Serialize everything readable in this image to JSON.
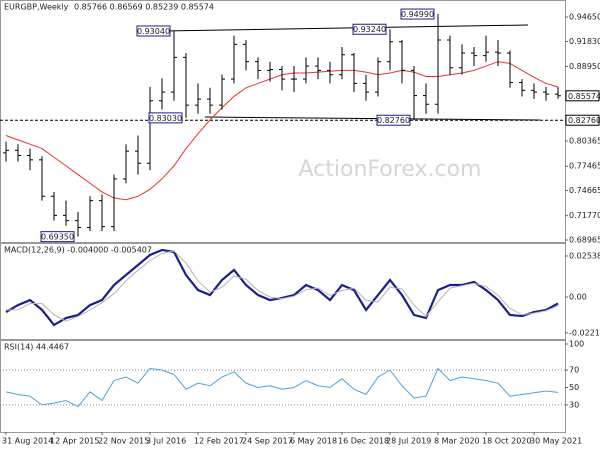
{
  "chart_data": [
    {
      "type": "ohlc",
      "title": "EURGBP,Weekly",
      "quote": "0.85766 0.86569 0.85239 0.85574",
      "watermark": "ActionForex.com",
      "categories": [
        "31 Aug 2014",
        null,
        null,
        null,
        "12 Apr 2015",
        null,
        null,
        null,
        "22 Nov 2015",
        null,
        null,
        null,
        "3 Jul 2016",
        null,
        null,
        null,
        "12 Feb 2017",
        null,
        null,
        null,
        "24 Sep 2017",
        null,
        null,
        null,
        "6 May 2018",
        null,
        null,
        null,
        "16 Dec 2018",
        null,
        null,
        null,
        "28 Jul 2019",
        null,
        null,
        null,
        "8 Mar 2020",
        null,
        null,
        null,
        "18 Oct 2020",
        null,
        null,
        null,
        "30 May 2021",
        null,
        null
      ],
      "open": [
        0.79,
        0.793,
        0.787,
        0.782,
        0.74,
        0.718,
        0.712,
        0.704,
        0.735,
        0.705,
        0.76,
        0.792,
        0.778,
        0.85,
        0.86,
        0.9,
        0.845,
        0.852,
        0.845,
        0.875,
        0.915,
        0.895,
        0.885,
        0.886,
        0.875,
        0.875,
        0.89,
        0.885,
        0.88,
        0.903,
        0.87,
        0.86,
        0.895,
        0.918,
        0.885,
        0.856,
        0.846,
        0.92,
        0.888,
        0.905,
        0.902,
        0.906,
        0.905,
        0.871,
        0.862,
        0.86,
        0.85766
      ],
      "high": [
        0.803,
        0.8,
        0.795,
        0.786,
        0.745,
        0.735,
        0.722,
        0.74,
        0.742,
        0.765,
        0.8,
        0.81,
        0.866,
        0.876,
        0.9304,
        0.905,
        0.87,
        0.865,
        0.88,
        0.925,
        0.92,
        0.9,
        0.895,
        0.89,
        0.89,
        0.9,
        0.9,
        0.895,
        0.912,
        0.905,
        0.88,
        0.9,
        0.9324,
        0.92,
        0.89,
        0.87,
        0.9499,
        0.925,
        0.915,
        0.912,
        0.925,
        0.92,
        0.908,
        0.875,
        0.87,
        0.866,
        0.86569
      ],
      "low": [
        0.78,
        0.78,
        0.77,
        0.735,
        0.712,
        0.706,
        0.6935,
        0.7,
        0.7,
        0.7,
        0.755,
        0.765,
        0.77,
        0.84,
        0.85,
        0.8303,
        0.835,
        0.835,
        0.84,
        0.87,
        0.885,
        0.875,
        0.872,
        0.862,
        0.86,
        0.87,
        0.875,
        0.87,
        0.875,
        0.86,
        0.85,
        0.855,
        0.885,
        0.87,
        0.8276,
        0.835,
        0.835,
        0.88,
        0.88,
        0.89,
        0.895,
        0.89,
        0.865,
        0.855,
        0.852,
        0.85,
        0.85239
      ],
      "close": [
        0.793,
        0.787,
        0.782,
        0.74,
        0.718,
        0.712,
        0.704,
        0.735,
        0.705,
        0.76,
        0.792,
        0.778,
        0.85,
        0.86,
        0.9,
        0.845,
        0.852,
        0.845,
        0.875,
        0.915,
        0.895,
        0.885,
        0.886,
        0.875,
        0.875,
        0.89,
        0.885,
        0.88,
        0.903,
        0.87,
        0.86,
        0.895,
        0.918,
        0.885,
        0.856,
        0.846,
        0.92,
        0.888,
        0.905,
        0.902,
        0.906,
        0.905,
        0.871,
        0.862,
        0.86,
        0.85766,
        0.85574
      ],
      "color": "#000000",
      "ma": {
        "color": "#e8332c",
        "values": [
          0.81,
          0.805,
          0.8,
          0.795,
          0.785,
          0.775,
          0.765,
          0.755,
          0.745,
          0.738,
          0.736,
          0.74,
          0.748,
          0.76,
          0.775,
          0.795,
          0.812,
          0.828,
          0.842,
          0.855,
          0.865,
          0.87,
          0.875,
          0.88,
          0.882,
          0.882,
          0.883,
          0.884,
          0.885,
          0.885,
          0.883,
          0.88,
          0.882,
          0.885,
          0.883,
          0.878,
          0.878,
          0.88,
          0.882,
          0.885,
          0.89,
          0.895,
          0.893,
          0.885,
          0.877,
          0.87,
          0.866
        ]
      },
      "annotations": [
        {
          "value": 0.9304,
          "label": "0.93040"
        },
        {
          "value": 0.8303,
          "label": "0.83030"
        },
        {
          "value": 0.9324,
          "label": "0.93240"
        },
        {
          "value": 0.8276,
          "label": "0.82760"
        },
        {
          "value": 0.9499,
          "label": "0.94990"
        },
        {
          "value": 0.6935,
          "label": "0.69350"
        }
      ],
      "hline": 0.8276,
      "price_labels": [
        {
          "value": 0.85574,
          "label": "0.85574"
        },
        {
          "value": 0.8276,
          "label": "0.82760"
        }
      ],
      "ylim": [
        0.6862,
        0.96608
      ],
      "yticks": [
        {
          "value": 0.9465,
          "label": "0.94650"
        },
        {
          "value": 0.9183,
          "label": "0.91830"
        },
        {
          "value": 0.8895,
          "label": "0.88950"
        },
        {
          "value": 0.80365,
          "label": "0.80365"
        },
        {
          "value": 0.77465,
          "label": "0.77465"
        },
        {
          "value": 0.74665,
          "label": "0.74665"
        },
        {
          "value": 0.7177,
          "label": "0.71770"
        },
        {
          "value": 0.68965,
          "label": "0.68965"
        }
      ]
    },
    {
      "type": "line",
      "title": "MACD(12,26,9) -0.004000 -0.005407",
      "series": [
        {
          "color": "#1b1f8a",
          "width": 2.2,
          "values": [
            -0.0093,
            -0.005,
            -0.0019,
            -0.008,
            -0.0173,
            -0.013,
            -0.0111,
            -0.005,
            -0.0019,
            0.0074,
            0.0136,
            0.0198,
            0.026,
            0.0291,
            0.0279,
            0.0136,
            0.0043,
            0.0012,
            0.0105,
            0.0167,
            0.0074,
            0.0012,
            -0.0019,
            -0.0006,
            0.0012,
            0.0074,
            0.0043,
            -0.0019,
            0.0074,
            0.0043,
            -0.008,
            0.0012,
            0.0105,
            0.0012,
            -0.0111,
            -0.013,
            0.0043,
            0.0074,
            0.0074,
            0.0093,
            0.0043,
            -0.0019,
            -0.0111,
            -0.0118,
            -0.0093,
            -0.008,
            -0.004
          ]
        },
        {
          "color": "#b5b5b5",
          "width": 1,
          "values": [
            -0.008,
            -0.008,
            -0.004,
            -0.004,
            -0.011,
            -0.015,
            -0.012,
            -0.008,
            -0.0035,
            0.002,
            0.01,
            0.0165,
            0.0225,
            0.027,
            0.0285,
            0.021,
            0.01,
            0.003,
            0.006,
            0.013,
            0.011,
            0.004,
            0,
            -0.001,
            0.0005,
            0.0045,
            0.0055,
            0.001,
            0.004,
            0.0055,
            -0.002,
            -0.003,
            0.006,
            0.005,
            -0.005,
            -0.012,
            -0.003,
            0.0055,
            0.007,
            0.0085,
            0.0065,
            0.001,
            -0.007,
            -0.011,
            -0.01,
            -0.0085,
            -0.005407
          ]
        }
      ],
      "ylim": [
        -0.0266,
        0.0334
      ],
      "yticks": [
        0.025387,
        {
          "value": 0,
          "label": "0.00"
        },
        -0.022161
      ]
    },
    {
      "type": "line",
      "title": "RSI(14) 44.4467",
      "series": [
        {
          "color": "#4aa3df",
          "width": 1,
          "values": [
            45,
            42,
            40,
            30,
            32,
            35,
            28,
            45,
            35,
            58,
            62,
            55,
            72,
            70,
            65,
            48,
            55,
            52,
            62,
            68,
            55,
            50,
            52,
            48,
            50,
            58,
            52,
            50,
            60,
            48,
            42,
            62,
            70,
            52,
            38,
            40,
            72,
            58,
            62,
            60,
            58,
            55,
            40,
            42,
            44,
            46,
            44.4467
          ]
        }
      ],
      "levels": [
        70,
        30
      ],
      "ylim": [
        0,
        100
      ],
      "yticks": [
        100,
        70,
        50,
        30
      ]
    }
  ]
}
